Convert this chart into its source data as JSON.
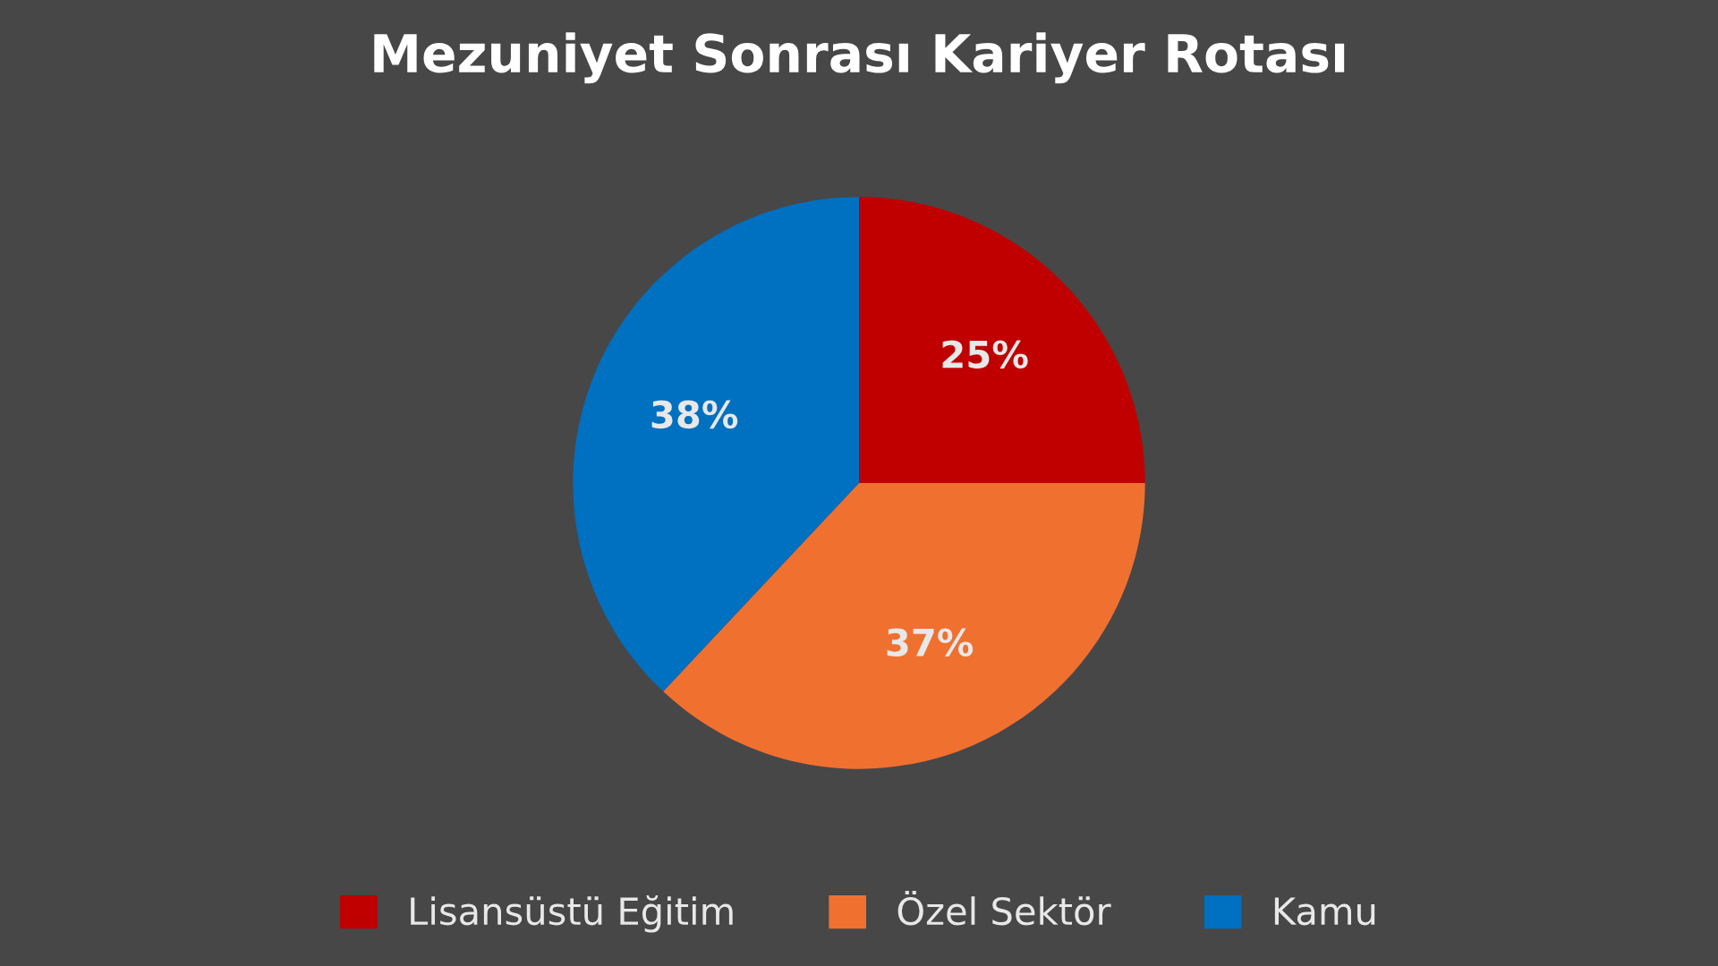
{
  "chart_data": {
    "type": "pie",
    "title": "Mezuniyet Sonrası Kariyer Rotası",
    "categories": [
      "Lisansüstü Eğitim",
      "Özel Sektör",
      "Kamu"
    ],
    "values": [
      25,
      37,
      38
    ],
    "colors": [
      "#c00000",
      "#f07030",
      "#0070c0"
    ],
    "value_labels": [
      "25%",
      "37%",
      "38%"
    ],
    "legend": "bottom"
  }
}
